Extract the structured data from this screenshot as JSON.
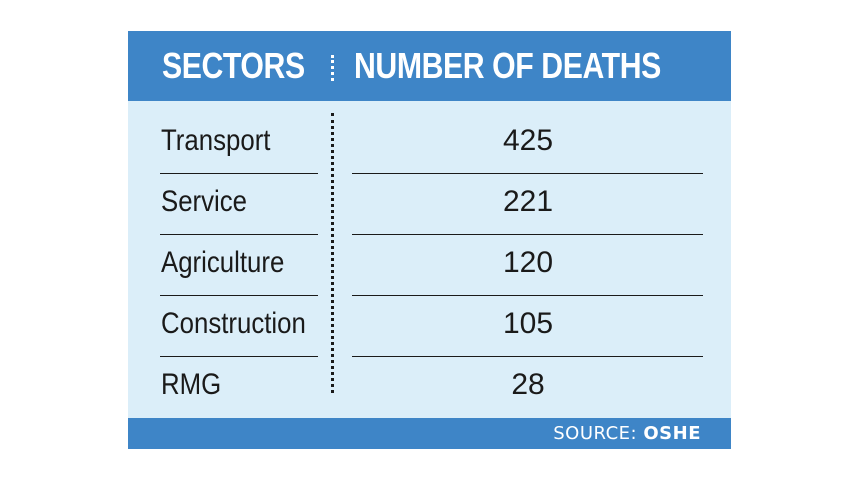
{
  "chart_data": {
    "type": "table",
    "columns": [
      "SECTORS",
      "NUMBER OF DEATHS"
    ],
    "rows": [
      {
        "sector": "Transport",
        "deaths": 425
      },
      {
        "sector": "Service",
        "deaths": 221
      },
      {
        "sector": "Agriculture",
        "deaths": 120
      },
      {
        "sector": "Construction",
        "deaths": 105
      },
      {
        "sector": "RMG",
        "deaths": 28
      }
    ],
    "source_label": "SOURCE:",
    "source_name": "OSHE"
  },
  "colors": {
    "header_bg": "#3e85c7",
    "body_bg": "#dbeef9",
    "text": "#1a1a1a",
    "header_text": "#ffffff"
  }
}
